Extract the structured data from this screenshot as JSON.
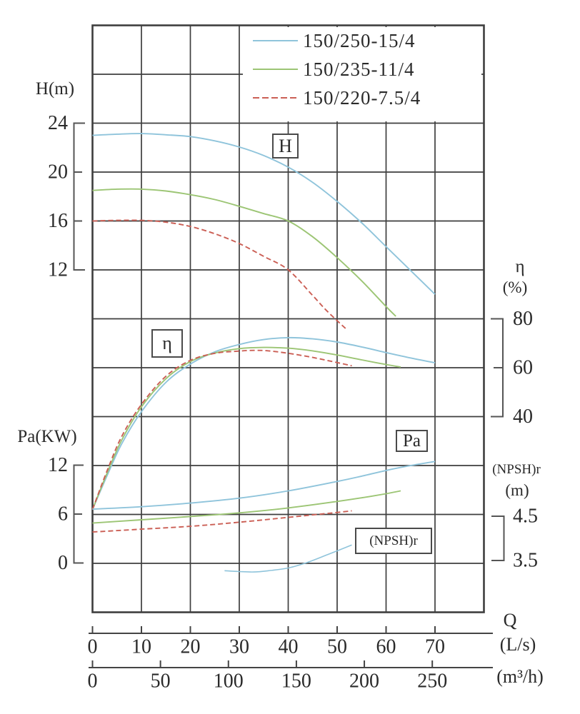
{
  "colors": {
    "blue": "#8fc4db",
    "green": "#9cc574",
    "red": "#cb5f55",
    "grid": "#3e3e3e",
    "text": "#2a2a2a"
  },
  "chart_data": {
    "type": "line",
    "title": "",
    "legend": [
      {
        "label": "150/250-15/4",
        "color_key": "blue",
        "dashed": false
      },
      {
        "label": "150/235-11/4",
        "color_key": "green",
        "dashed": false
      },
      {
        "label": "150/220-7.5/4",
        "color_key": "red",
        "dashed": true
      }
    ],
    "x_axis": {
      "name": "Q",
      "unit_ls": "(L/s)",
      "unit_m3h": "(m³/h)",
      "ticks_ls": [
        0,
        10,
        20,
        30,
        40,
        50,
        60,
        70
      ],
      "ticks_m3h": [
        0,
        50,
        100,
        150,
        200,
        250
      ],
      "range_ls": [
        0,
        80
      ],
      "grid": true
    },
    "y_axes": {
      "head": {
        "label": "H(m)",
        "ticks": [
          24,
          20,
          16,
          12
        ]
      },
      "power": {
        "label": "Pa(KW)",
        "ticks": [
          12,
          6,
          0
        ]
      },
      "efficiency": {
        "label": "η",
        "unit": "(%)",
        "ticks": [
          80,
          60,
          40
        ]
      },
      "npsh": {
        "label": "(NPSH)r",
        "unit": "(m)",
        "ticks": [
          4.5,
          3.5
        ]
      }
    },
    "curve_group_labels": {
      "head": "H",
      "efficiency": "η",
      "power": "Pa",
      "npsh": "(NPSH)r"
    },
    "series": {
      "head": [
        {
          "name": "150/250-15/4",
          "color_key": "blue",
          "dashed": false,
          "points": [
            [
              0,
              23.0
            ],
            [
              5,
              23.1
            ],
            [
              10,
              23.15
            ],
            [
              15,
              23.05
            ],
            [
              20,
              22.9
            ],
            [
              25,
              22.55
            ],
            [
              30,
              22.05
            ],
            [
              35,
              21.35
            ],
            [
              40,
              20.4
            ],
            [
              45,
              19.15
            ],
            [
              50,
              17.6
            ],
            [
              55,
              15.85
            ],
            [
              60,
              13.9
            ],
            [
              65,
              11.95
            ],
            [
              70,
              10.0
            ]
          ]
        },
        {
          "name": "150/235-11/4",
          "color_key": "green",
          "dashed": false,
          "points": [
            [
              0,
              18.5
            ],
            [
              5,
              18.6
            ],
            [
              10,
              18.6
            ],
            [
              15,
              18.45
            ],
            [
              20,
              18.15
            ],
            [
              25,
              17.75
            ],
            [
              30,
              17.2
            ],
            [
              35,
              16.6
            ],
            [
              40,
              16.0
            ],
            [
              45,
              14.7
            ],
            [
              50,
              13.0
            ],
            [
              55,
              11.1
            ],
            [
              60,
              9.0
            ],
            [
              62,
              8.2
            ]
          ]
        },
        {
          "name": "150/220-7.5/4",
          "color_key": "red",
          "dashed": true,
          "points": [
            [
              0,
              16.0
            ],
            [
              5,
              16.05
            ],
            [
              10,
              16.05
            ],
            [
              15,
              15.9
            ],
            [
              20,
              15.55
            ],
            [
              25,
              14.95
            ],
            [
              30,
              14.15
            ],
            [
              35,
              13.1
            ],
            [
              40,
              12.0
            ],
            [
              45,
              9.9
            ],
            [
              48,
              8.6
            ],
            [
              52,
              7.1
            ]
          ]
        }
      ],
      "efficiency": [
        {
          "name": "150/250-15/4",
          "color_key": "blue",
          "dashed": false,
          "points": [
            [
              0,
              2
            ],
            [
              3,
              16
            ],
            [
              6,
              29
            ],
            [
              10,
              42
            ],
            [
              15,
              54
            ],
            [
              20,
              61.5
            ],
            [
              25,
              66.5
            ],
            [
              30,
              69.5
            ],
            [
              35,
              71.5
            ],
            [
              40,
              72.3
            ],
            [
              45,
              71.8
            ],
            [
              50,
              70.5
            ],
            [
              55,
              68.5
            ],
            [
              60,
              66.2
            ],
            [
              65,
              64.0
            ],
            [
              70,
              62.0
            ]
          ]
        },
        {
          "name": "150/235-11/4",
          "color_key": "green",
          "dashed": false,
          "points": [
            [
              0,
              2
            ],
            [
              3,
              17
            ],
            [
              6,
              30.5
            ],
            [
              10,
              44
            ],
            [
              15,
              55.5
            ],
            [
              20,
              62.5
            ],
            [
              25,
              66.0
            ],
            [
              30,
              67.8
            ],
            [
              35,
              68.3
            ],
            [
              40,
              68.0
            ],
            [
              45,
              66.9
            ],
            [
              50,
              65.2
            ],
            [
              55,
              63.2
            ],
            [
              60,
              61.3
            ],
            [
              63,
              60.3
            ]
          ]
        },
        {
          "name": "150/220-7.5/4",
          "color_key": "red",
          "dashed": true,
          "points": [
            [
              0,
              2
            ],
            [
              3,
              18
            ],
            [
              6,
              32
            ],
            [
              10,
              45
            ],
            [
              15,
              56.5
            ],
            [
              20,
              63.0
            ],
            [
              25,
              65.9
            ],
            [
              30,
              66.8
            ],
            [
              33,
              67.1
            ],
            [
              36,
              66.9
            ],
            [
              40,
              65.9
            ],
            [
              45,
              64.2
            ],
            [
              50,
              62.1
            ],
            [
              53,
              60.8
            ]
          ]
        }
      ],
      "power": [
        {
          "name": "150/250-15/4",
          "color_key": "blue",
          "dashed": false,
          "points": [
            [
              0,
              6.6
            ],
            [
              10,
              6.9
            ],
            [
              20,
              7.35
            ],
            [
              30,
              7.95
            ],
            [
              40,
              8.85
            ],
            [
              50,
              10.0
            ],
            [
              55,
              10.65
            ],
            [
              60,
              11.35
            ],
            [
              65,
              11.95
            ],
            [
              70,
              12.45
            ]
          ]
        },
        {
          "name": "150/235-11/4",
          "color_key": "green",
          "dashed": false,
          "points": [
            [
              0,
              4.9
            ],
            [
              10,
              5.3
            ],
            [
              20,
              5.7
            ],
            [
              30,
              6.15
            ],
            [
              40,
              6.75
            ],
            [
              50,
              7.55
            ],
            [
              55,
              8.0
            ],
            [
              60,
              8.5
            ],
            [
              63,
              8.85
            ]
          ]
        },
        {
          "name": "150/220-7.5/4",
          "color_key": "red",
          "dashed": true,
          "points": [
            [
              0,
              3.8
            ],
            [
              10,
              4.15
            ],
            [
              20,
              4.5
            ],
            [
              30,
              5.0
            ],
            [
              40,
              5.6
            ],
            [
              45,
              5.9
            ],
            [
              50,
              6.2
            ],
            [
              53,
              6.4
            ]
          ]
        }
      ],
      "npsh": [
        {
          "name": "150/250-15/4",
          "color_key": "blue",
          "dashed": false,
          "points": [
            [
              27,
              3.27
            ],
            [
              30,
              3.25
            ],
            [
              33,
              3.24
            ],
            [
              36,
              3.27
            ],
            [
              40,
              3.33
            ],
            [
              44,
              3.46
            ],
            [
              48,
              3.63
            ],
            [
              53,
              3.85
            ]
          ]
        }
      ]
    }
  }
}
